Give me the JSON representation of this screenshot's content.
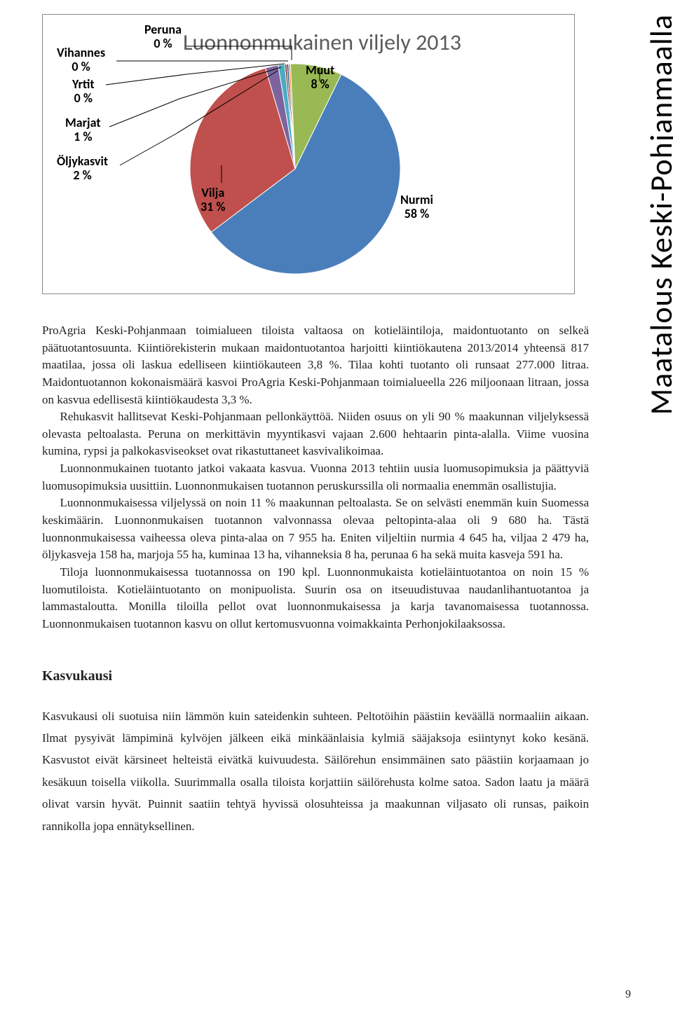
{
  "sidebar_label": "Maatalous Keski-Pohjanmaalla",
  "page_number": "9",
  "chart": {
    "type": "pie",
    "title": "Luonnonmukainen viljely 2013",
    "title_fontsize": 32,
    "title_color": "#5b5b5b",
    "label_fontsize": 18,
    "label_fontweight": "bold",
    "background_color": "#ffffff",
    "border_color": "#888888",
    "slices": [
      {
        "label": "Nurmi",
        "pct": "58 %",
        "value": 58,
        "color": "#4a7ebb"
      },
      {
        "label": "Vilja",
        "pct": "31 %",
        "value": 31,
        "color": "#bf504d"
      },
      {
        "label": "Muut",
        "pct": "8 %",
        "value": 8,
        "color": "#98b954"
      },
      {
        "label": "Öljykasvit",
        "pct": "2 %",
        "value": 2,
        "color": "#7e649e"
      },
      {
        "label": "Marjat",
        "pct": "1 %",
        "value": 1,
        "color": "#4aacc5"
      },
      {
        "label": "Yrtit",
        "pct": "0 %",
        "value": 0,
        "color": "#f79646"
      },
      {
        "label": "Vihannes",
        "pct": "0 %",
        "value": 0,
        "color": "#2c4d75"
      },
      {
        "label": "Peruna",
        "pct": "0 %",
        "value": 0,
        "color": "#772c2a"
      }
    ]
  },
  "paragraphs": {
    "p1": "ProAgria Keski-Pohjanmaan toimialueen tiloista valtaosa on kotieläintiloja, maidontuotanto on selkeä päätuotantosuunta. Kiintiörekisterin mukaan maidontuotantoa harjoitti kiintiökautena 2013/2014 yhteensä 817 maatilaa, jossa oli laskua edelliseen kiintiökauteen 3,8 %. Tilaa kohti tuotanto oli runsaat 277.000 litraa. Maidontuotannon kokonaismäärä kasvoi ProAgria Keski-Pohjanmaan toimialueella 226 miljoonaan litraan, jossa on kasvua edellisestä kiintiökaudesta 3,3 %.",
    "p2": "Rehukasvit hallitsevat Keski-Pohjanmaan pellonkäyttöä. Niiden osuus on yli 90 % maakunnan viljelyksessä olevasta peltoalasta. Peruna on merkittävin myyntikasvi vajaan 2.600 hehtaarin pinta-alalla. Viime vuosina kumina, rypsi ja palkokasviseokset ovat rikastuttaneet kasvivalikoimaa.",
    "p3": "Luonnonmukainen tuotanto jatkoi vakaata kasvua. Vuonna 2013 tehtiin uusia luomusopimuksia ja päättyviä luomusopimuksia uusittiin. Luonnonmukaisen tuotannon peruskurssilla oli normaalia enemmän osallistujia.",
    "p4": "Luonnonmukaisessa viljelyssä on noin 11 % maakunnan peltoalasta. Se on selvästi enemmän kuin Suomessa keskimäärin. Luonnonmukaisen tuotannon valvonnassa olevaa peltopinta-alaa oli 9 680 ha. Tästä luonnonmukaisessa vaiheessa oleva pinta-alaa on 7 955 ha. Eniten viljeltiin nurmia 4 645 ha, viljaa 2 479 ha, öljykasveja 158 ha, marjoja 55 ha, kuminaa 13 ha, vihanneksia 8 ha, perunaa 6 ha sekä muita kasveja 591 ha.",
    "p5": "Tiloja luonnonmukaisessa tuotannossa on 190 kpl. Luonnonmukaista kotieläintuotantoa on noin 15 % luomutiloista. Kotieläintuotanto on monipuolista. Suurin osa on itseuudistuvaa naudanlihantuotantoa ja lammastaloutta. Monilla tiloilla pellot ovat luonnonmukaisessa ja karja tavanomaisessa tuotannossa. Luonnonmukaisen tuotannon kasvu on ollut kertomusvuonna voimakkainta Perhonjokilaaksossa."
  },
  "section2": {
    "heading": "Kasvukausi",
    "body": "Kasvukausi oli suotuisa niin lämmön kuin sateidenkin suhteen. Peltotöihin päästiin keväällä normaaliin aikaan. Ilmat pysyivät lämpiminä kylvöjen jälkeen eikä minkäänlaisia kylmiä sääjaksoja esiintynyt koko kesänä. Kasvustot eivät kärsineet helteistä eivätkä kuivuudesta. Säilörehun ensimmäinen sato päästiin korjaamaan jo kesäkuun toisella viikolla. Suurimmalla osalla tiloista korjattiin säilörehusta kolme satoa. Sadon laatu ja määrä olivat varsin hyvät. Puinnit saatiin tehtyä hyvissä olosuhteissa ja maakunnan viljasato oli runsas, paikoin rannikolla jopa ennätyksellinen."
  }
}
